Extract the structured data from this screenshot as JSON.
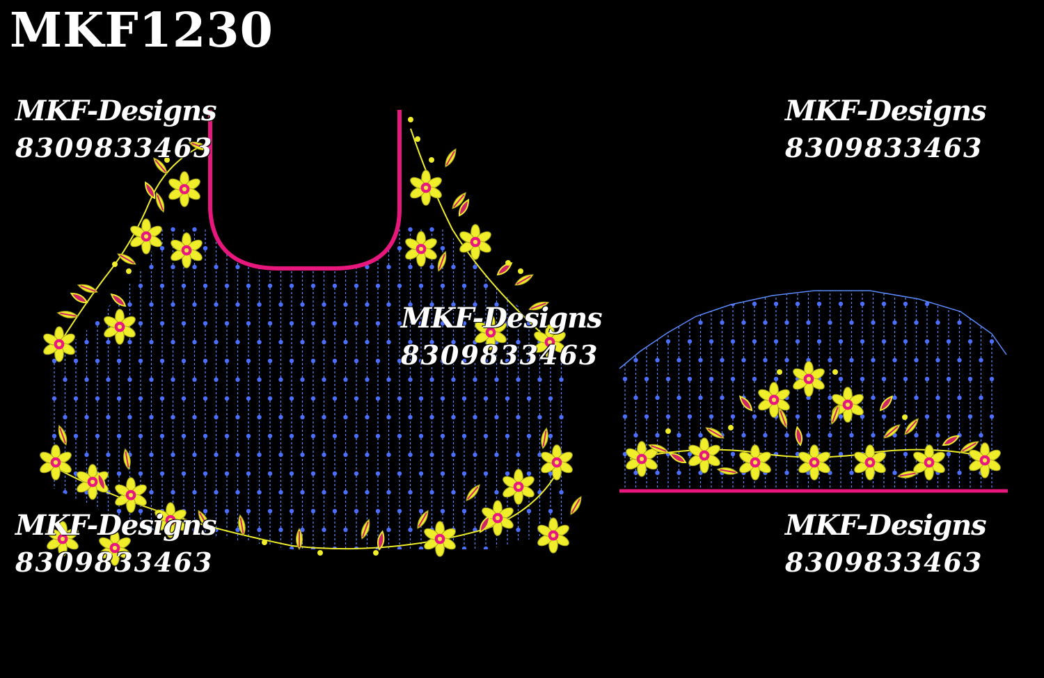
{
  "design_code": "MKF1230",
  "watermarks": [
    {
      "brand": "MKF-Designs",
      "phone": "8309833463"
    },
    {
      "brand": "MKF-Designs",
      "phone": "8309833463"
    },
    {
      "brand": "MKF-Designs",
      "phone": "8309833463"
    },
    {
      "brand": "MKF-Designs",
      "phone": "8309833463"
    },
    {
      "brand": "MKF-Designs",
      "phone": "8309833463"
    }
  ],
  "colors": {
    "background": "#000000",
    "neckline": "#e8177d",
    "stitch_lines": "#5b8cff",
    "beads": "#4d6fff",
    "petals": "#f0ee2a",
    "flower_center": "#e8177d",
    "leaf_accent": "#d02468"
  }
}
